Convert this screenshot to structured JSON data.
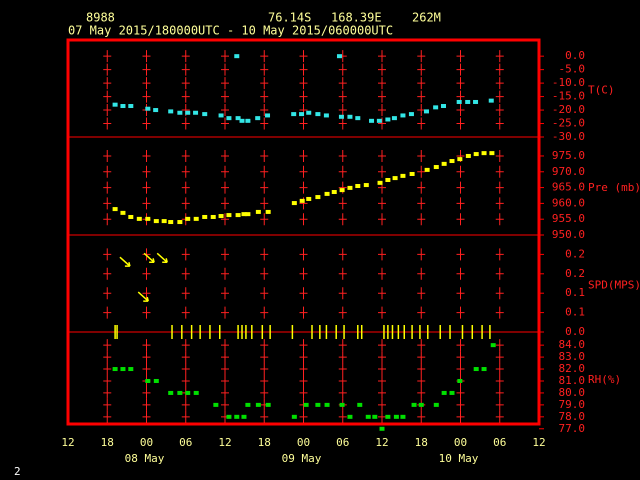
{
  "header": {
    "station": "8988",
    "lat": "76.14S",
    "lon": "168.39E",
    "elev": "262M",
    "period": "07 May 2015/180000UTC - 10 May 2015/060000UTC",
    "footer": "2"
  },
  "x_axis": {
    "xlim": [
      0,
      72
    ],
    "xticks": [
      {
        "value": 0,
        "label": "12"
      },
      {
        "value": 6,
        "label": "18"
      },
      {
        "value": 12,
        "label": "00"
      },
      {
        "value": 18,
        "label": "06"
      },
      {
        "value": 24,
        "label": "12"
      },
      {
        "value": 30,
        "label": "18"
      },
      {
        "value": 36,
        "label": "00"
      },
      {
        "value": 42,
        "label": "06"
      },
      {
        "value": 48,
        "label": "12"
      },
      {
        "value": 54,
        "label": "18"
      },
      {
        "value": 60,
        "label": "00"
      },
      {
        "value": 66,
        "label": "06"
      },
      {
        "value": 72,
        "label": "12"
      }
    ],
    "date_labels": [
      {
        "value": 12,
        "label": "08 May"
      },
      {
        "value": 36,
        "label": "09 May"
      },
      {
        "value": 60,
        "label": "10 May"
      }
    ]
  },
  "chart_data": [
    {
      "type": "scatter",
      "ylabel": "T(C)",
      "color": "#33e6e6",
      "ylim": [
        -30,
        6
      ],
      "yticks": [
        {
          "value": 0,
          "label": "0.0"
        },
        {
          "value": -5,
          "label": "-5.0"
        },
        {
          "value": -10,
          "label": "-10.0"
        },
        {
          "value": -15,
          "label": "-15.0"
        },
        {
          "value": -20,
          "label": "-20.0"
        },
        {
          "value": -25,
          "label": "-25.0"
        },
        {
          "value": -30,
          "label": "-30.0"
        }
      ],
      "x": [
        7.2,
        8.4,
        9.6,
        12.2,
        13.4,
        15.7,
        17.1,
        18.3,
        19.5,
        20.9,
        23.4,
        24.6,
        25.8,
        26,
        26.6,
        27.5,
        29,
        30.5,
        34.5,
        35.7,
        36.8,
        38.2,
        39.5,
        41.5,
        41.8,
        43.1,
        44.3,
        46.4,
        47.6,
        48.9,
        49.9,
        51.2,
        52.5,
        54.8,
        56.2,
        57.4,
        59.8,
        61.1,
        62.3,
        64.7
      ],
      "values": [
        -18,
        -18.5,
        -18.5,
        -19.5,
        -20,
        -20.5,
        -21,
        -21,
        -21,
        -21.5,
        -22,
        -23,
        0,
        -23,
        -24,
        -24,
        -23,
        -22,
        -21.5,
        -21.5,
        -21,
        -21.5,
        -22,
        0,
        -22.5,
        -22.5,
        -23,
        -24,
        -24,
        -23.5,
        -23,
        -22,
        -21.5,
        -20.5,
        -19,
        -18.5,
        -17,
        -17,
        -17,
        -16.5
      ]
    },
    {
      "type": "scatter",
      "ylabel": "Pre (mb)",
      "color": "#ffff00",
      "ylim": [
        950,
        981
      ],
      "yticks": [
        {
          "value": 975,
          "label": "975.0"
        },
        {
          "value": 970,
          "label": "970.0"
        },
        {
          "value": 965,
          "label": "965.0"
        },
        {
          "value": 960,
          "label": "960.0"
        },
        {
          "value": 955,
          "label": "955.0"
        },
        {
          "value": 950,
          "label": "950.0"
        }
      ],
      "x": [
        7.2,
        8.4,
        9.6,
        10.9,
        12.2,
        13.5,
        14.7,
        15.7,
        17.1,
        18.3,
        19.6,
        20.9,
        22.2,
        23.4,
        24.6,
        26,
        26.9,
        27.5,
        29.1,
        30.6,
        34.6,
        35.8,
        36.8,
        38.2,
        39.6,
        40.7,
        41.9,
        43.1,
        44.3,
        45.6,
        47.7,
        48.9,
        50,
        51.2,
        52.6,
        54.9,
        56.3,
        57.5,
        58.7,
        59.9,
        61.2,
        62.4,
        63.6,
        64.8
      ],
      "values": [
        958.2,
        957,
        955.7,
        955.1,
        955.1,
        954.4,
        954.4,
        954.1,
        954.1,
        955.1,
        955.1,
        955.7,
        955.7,
        956,
        956.3,
        956.3,
        956.6,
        956.6,
        957.3,
        957.3,
        960.1,
        960.8,
        961.4,
        962,
        963,
        963.6,
        964.2,
        964.9,
        965.5,
        965.8,
        966.5,
        967.4,
        968,
        968.7,
        969.3,
        970.6,
        971.5,
        972.5,
        973.4,
        974,
        975,
        975.6,
        975.9,
        975.9
      ]
    },
    {
      "type": "wind",
      "ylabel": "SPD(MPS)",
      "color": "#ffff00",
      "ylim": [
        0,
        0.25
      ],
      "yticks": [
        0.2,
        {
          "value": 0.15,
          "label": "0.2"
        },
        0.1,
        {
          "value": 0.05,
          "label": "0.1"
        },
        {
          "value": 0,
          "label": "0.0"
        }
      ],
      "x": [
        7.2,
        7.5,
        8.7,
        11.5,
        12.4,
        14.4,
        15.9,
        17.4,
        18.9,
        20.2,
        21.7,
        23.2,
        26,
        26.6,
        27.2,
        28.1,
        29.7,
        30.9,
        34.3,
        37.3,
        38.5,
        39.5,
        41,
        42.2,
        44.3,
        44.9,
        48.3,
        48.9,
        49.6,
        50.5,
        51.4,
        52.6,
        53.8,
        55,
        56.9,
        58.4,
        60.3,
        61.8,
        63.3,
        64.5
      ],
      "values": [
        0,
        0,
        0.18,
        0.09,
        0.19,
        0.19,
        0,
        0,
        0,
        0,
        0,
        0,
        0,
        0,
        0,
        0,
        0,
        0,
        0,
        0,
        0,
        0,
        0,
        0,
        0,
        0,
        0,
        0,
        0,
        0,
        0,
        0,
        0,
        0,
        0,
        0,
        0,
        0,
        0,
        0
      ]
    },
    {
      "type": "scatter",
      "ylabel": "RH(%)",
      "color": "#00e000",
      "ylim": [
        77.4,
        85.1
      ],
      "yticks": [
        {
          "value": 84,
          "label": "84.0"
        },
        {
          "value": 83,
          "label": "83.0"
        },
        {
          "value": 82,
          "label": "82.0"
        },
        {
          "value": 81,
          "label": "81.0"
        },
        {
          "value": 80,
          "label": "80.0"
        },
        {
          "value": 79,
          "label": "79.0"
        },
        {
          "value": 78,
          "label": "78.0"
        },
        {
          "value": 77,
          "label": "77.0"
        }
      ],
      "x": [
        7.2,
        8.4,
        9.6,
        12.2,
        13.5,
        15.7,
        17.1,
        18.3,
        19.6,
        22.6,
        24.6,
        25.8,
        26.9,
        27.5,
        29.1,
        30.6,
        34.6,
        36.4,
        38.2,
        39.6,
        41.9,
        43.1,
        44.6,
        45.9,
        46.9,
        48,
        48.9,
        50.2,
        51.2,
        52.9,
        54,
        56.3,
        57.5,
        58.7,
        59.9,
        62.4,
        63.6,
        65
      ],
      "values": [
        82,
        82,
        82,
        81,
        81,
        80,
        80,
        80,
        80,
        79,
        78,
        78,
        78,
        79,
        79,
        79,
        78,
        79,
        79,
        79,
        79,
        78,
        79,
        78,
        78,
        77,
        78,
        78,
        78,
        79,
        79,
        79,
        80,
        80,
        81,
        82,
        82,
        84
      ]
    }
  ]
}
